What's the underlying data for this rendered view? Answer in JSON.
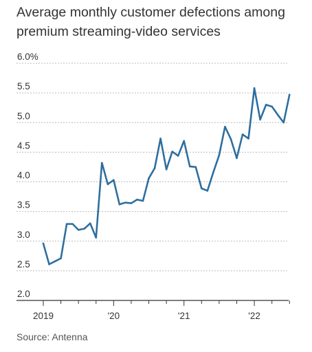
{
  "title": "Average monthly customer defections among premium streaming-video services",
  "source": "Source: Antenna",
  "colors": {
    "line": "#2e6e9e",
    "grid": "#bbbbbb",
    "axis": "#333333"
  },
  "chart_data": {
    "type": "line",
    "title": "Average monthly customer defections among premium streaming-video services",
    "xlabel": "",
    "ylabel": "",
    "y_tick_labels": [
      "6.0%",
      "5.5",
      "5.0",
      "4.5",
      "4.0",
      "3.5",
      "3.0",
      "2.5",
      "2.0"
    ],
    "y_ticks": [
      6.0,
      5.5,
      5.0,
      4.5,
      4.0,
      3.5,
      3.0,
      2.5,
      2.0
    ],
    "ylim": [
      2.0,
      6.0
    ],
    "x_tick_labels": [
      "2019",
      "'20",
      "'21",
      "'22"
    ],
    "grid": true,
    "series": [
      {
        "x": [
          "2019-01",
          "2019-02",
          "2019-03",
          "2019-04",
          "2019-05",
          "2019-06",
          "2019-07",
          "2019-08",
          "2019-09",
          "2019-10",
          "2019-11",
          "2019-12",
          "2020-01",
          "2020-02",
          "2020-03",
          "2020-04",
          "2020-05",
          "2020-06",
          "2020-07",
          "2020-08",
          "2020-09",
          "2020-10",
          "2020-11",
          "2020-12",
          "2021-01",
          "2021-02",
          "2021-03",
          "2021-04",
          "2021-05",
          "2021-06",
          "2021-07",
          "2021-08",
          "2021-09",
          "2021-10",
          "2021-11",
          "2021-12",
          "2022-01",
          "2022-02",
          "2022-03",
          "2022-04",
          "2022-05",
          "2022-06",
          "2022-07"
        ],
        "values": [
          2.96,
          2.61,
          2.66,
          2.71,
          3.29,
          3.29,
          3.19,
          3.21,
          3.3,
          3.06,
          4.32,
          3.96,
          4.03,
          3.62,
          3.65,
          3.64,
          3.7,
          3.68,
          4.06,
          4.23,
          4.73,
          4.21,
          4.51,
          4.44,
          4.69,
          4.26,
          4.25,
          3.89,
          3.85,
          4.16,
          4.45,
          4.93,
          4.72,
          4.4,
          4.8,
          4.73,
          5.58,
          5.05,
          5.3,
          5.27,
          5.13,
          5.0,
          5.47
        ]
      }
    ]
  }
}
